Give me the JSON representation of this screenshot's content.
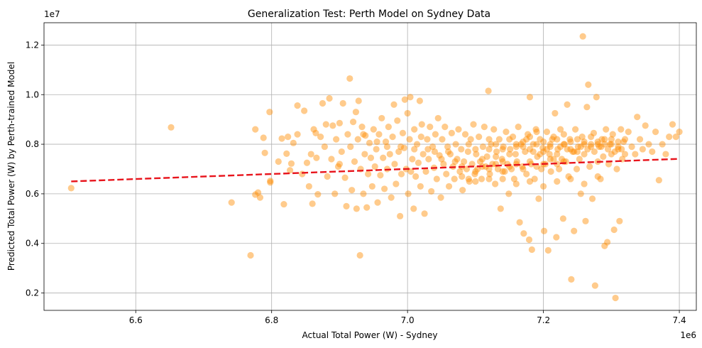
{
  "chart_data": {
    "type": "scatter",
    "title": "Generalization Test: Perth Model on Sydney Data",
    "xlabel": "Actual Total Power (W) - Sydney",
    "ylabel": "Predicted Total Power (W) by Perth-trained Model",
    "x_offset_label": "1e6",
    "y_offset_label": "1e7",
    "xlim": [
      6.465,
      7.425
    ],
    "ylim": [
      0.13,
      1.29
    ],
    "x_ticks": [
      6.6,
      6.8,
      7.0,
      7.2,
      7.4
    ],
    "x_tick_labels": [
      "6.6",
      "6.8",
      "7.0",
      "7.2",
      "7.4"
    ],
    "y_ticks": [
      0.2,
      0.4,
      0.6,
      0.8,
      1.0,
      1.2
    ],
    "y_tick_labels": [
      "0.2",
      "0.4",
      "0.6",
      "0.8",
      "1.0",
      "1.2"
    ],
    "grid": true,
    "scatter_color": "#ff8c00",
    "scatter_alpha": 0.45,
    "trend_color": "#e8141c",
    "trend_line": {
      "x": [
        6.505,
        7.4
      ],
      "y": [
        0.65,
        0.741
      ]
    },
    "points": [
      [
        6.505,
        0.623
      ],
      [
        6.652,
        0.868
      ],
      [
        6.741,
        0.565
      ],
      [
        6.769,
        0.352
      ],
      [
        6.776,
        0.86
      ],
      [
        6.776,
        0.597
      ],
      [
        6.78,
        0.605
      ],
      [
        6.783,
        0.585
      ],
      [
        6.788,
        0.826
      ],
      [
        6.79,
        0.765
      ],
      [
        6.797,
        0.93
      ],
      [
        6.798,
        0.652
      ],
      [
        6.798,
        0.646
      ],
      [
        6.81,
        0.73
      ],
      [
        6.815,
        0.823
      ],
      [
        6.818,
        0.558
      ],
      [
        6.822,
        0.762
      ],
      [
        6.824,
        0.83
      ],
      [
        6.827,
        0.695
      ],
      [
        6.829,
        0.722
      ],
      [
        6.832,
        0.805
      ],
      [
        6.838,
        0.956
      ],
      [
        6.838,
        0.84
      ],
      [
        6.845,
        0.68
      ],
      [
        6.848,
        0.935
      ],
      [
        6.852,
        0.725
      ],
      [
        6.855,
        0.63
      ],
      [
        6.858,
        0.76
      ],
      [
        6.86,
        0.56
      ],
      [
        6.862,
        0.86
      ],
      [
        6.866,
        0.745
      ],
      [
        6.868,
        0.598
      ],
      [
        6.872,
        0.83
      ],
      [
        6.875,
        0.965
      ],
      [
        6.878,
        0.79
      ],
      [
        6.882,
        0.67
      ],
      [
        6.885,
        0.985
      ],
      [
        6.888,
        0.74
      ],
      [
        6.89,
        0.875
      ],
      [
        6.893,
        0.6
      ],
      [
        6.895,
        0.82
      ],
      [
        6.898,
        0.71
      ],
      [
        6.9,
        0.885
      ],
      [
        6.903,
        0.77
      ],
      [
        6.905,
        0.965
      ],
      [
        6.908,
        0.665
      ],
      [
        6.91,
        0.55
      ],
      [
        6.912,
        0.84
      ],
      [
        6.915,
        1.065
      ],
      [
        6.916,
        0.79
      ],
      [
        6.918,
        0.615
      ],
      [
        6.92,
        0.89
      ],
      [
        6.922,
        0.73
      ],
      [
        6.924,
        0.93
      ],
      [
        6.925,
        0.54
      ],
      [
        6.927,
        0.82
      ],
      [
        6.928,
        0.975
      ],
      [
        6.93,
        0.352
      ],
      [
        6.931,
        0.7
      ],
      [
        6.933,
        0.87
      ],
      [
        6.935,
        0.6
      ],
      [
        6.937,
        0.76
      ],
      [
        6.938,
        0.835
      ],
      [
        6.94,
        0.545
      ],
      [
        6.942,
        0.68
      ],
      [
        6.944,
        0.805
      ],
      [
        6.946,
        0.745
      ],
      [
        6.948,
        0.63
      ],
      [
        6.95,
        0.86
      ],
      [
        6.952,
        0.71
      ],
      [
        6.954,
        0.78
      ],
      [
        6.956,
        0.565
      ],
      [
        6.958,
        0.84
      ],
      [
        6.96,
        0.675
      ],
      [
        6.962,
        0.905
      ],
      [
        6.964,
        0.745
      ],
      [
        6.966,
        0.62
      ],
      [
        6.968,
        0.81
      ],
      [
        6.97,
        0.7
      ],
      [
        6.972,
        0.87
      ],
      [
        6.974,
        0.76
      ],
      [
        6.976,
        0.585
      ],
      [
        6.978,
        0.83
      ],
      [
        6.98,
        0.96
      ],
      [
        6.981,
        0.72
      ],
      [
        6.983,
        0.64
      ],
      [
        6.985,
        0.895
      ],
      [
        6.987,
        0.77
      ],
      [
        6.989,
        0.51
      ],
      [
        6.991,
        0.68
      ],
      [
        6.993,
        0.845
      ],
      [
        6.995,
        0.785
      ],
      [
        6.996,
        0.98
      ],
      [
        6.998,
        0.7
      ],
      [
        7.0,
        0.925
      ],
      [
        7.001,
        0.6
      ],
      [
        7.003,
        0.82
      ],
      [
        7.004,
        0.99
      ],
      [
        7.005,
        0.69
      ],
      [
        7.007,
        0.74
      ],
      [
        7.009,
        0.54
      ],
      [
        7.01,
        0.86
      ],
      [
        7.012,
        0.67
      ],
      [
        7.014,
        0.8
      ],
      [
        7.016,
        0.725
      ],
      [
        7.018,
        0.975
      ],
      [
        7.019,
        0.63
      ],
      [
        7.021,
        0.88
      ],
      [
        7.023,
        0.76
      ],
      [
        7.025,
        0.52
      ],
      [
        7.027,
        0.69
      ],
      [
        7.029,
        0.82
      ],
      [
        7.031,
        0.74
      ],
      [
        7.033,
        0.87
      ],
      [
        7.035,
        0.61
      ],
      [
        7.037,
        0.79
      ],
      [
        7.039,
        0.705
      ],
      [
        7.041,
        0.84
      ],
      [
        7.043,
        0.66
      ],
      [
        7.045,
        0.905
      ],
      [
        7.047,
        0.755
      ],
      [
        7.049,
        0.585
      ],
      [
        7.051,
        0.82
      ],
      [
        7.053,
        0.72
      ],
      [
        7.055,
        0.87
      ],
      [
        7.057,
        0.68
      ],
      [
        7.059,
        0.79
      ],
      [
        7.061,
        0.63
      ],
      [
        7.063,
        0.76
      ],
      [
        7.065,
        0.845
      ],
      [
        7.067,
        0.71
      ],
      [
        7.069,
        0.66
      ],
      [
        7.071,
        0.8
      ],
      [
        7.073,
        0.74
      ],
      [
        7.075,
        0.86
      ],
      [
        7.077,
        0.69
      ],
      [
        7.079,
        0.78
      ],
      [
        7.081,
        0.615
      ],
      [
        7.083,
        0.73
      ],
      [
        7.085,
        0.84
      ],
      [
        7.087,
        0.7
      ],
      [
        7.089,
        0.77
      ],
      [
        7.091,
        0.65
      ],
      [
        7.093,
        0.82
      ],
      [
        7.095,
        0.72
      ],
      [
        7.097,
        0.88
      ],
      [
        7.099,
        0.68
      ],
      [
        7.101,
        0.76
      ],
      [
        7.103,
        0.7
      ],
      [
        7.105,
        0.83
      ],
      [
        7.107,
        0.73
      ],
      [
        7.109,
        0.66
      ],
      [
        7.111,
        0.79
      ],
      [
        7.113,
        0.87
      ],
      [
        7.115,
        0.71
      ],
      [
        7.117,
        0.75
      ],
      [
        7.119,
        1.015
      ],
      [
        7.121,
        0.68
      ],
      [
        7.123,
        0.8
      ],
      [
        7.125,
        0.72
      ],
      [
        7.127,
        0.86
      ],
      [
        7.129,
        0.64
      ],
      [
        7.131,
        0.77
      ],
      [
        7.133,
        0.7
      ],
      [
        7.135,
        0.82
      ],
      [
        7.137,
        0.54
      ],
      [
        7.139,
        0.74
      ],
      [
        7.141,
        0.79
      ],
      [
        7.143,
        0.69
      ],
      [
        7.145,
        0.85
      ],
      [
        7.147,
        0.72
      ],
      [
        7.149,
        0.6
      ],
      [
        7.151,
        0.78
      ],
      [
        7.153,
        0.7
      ],
      [
        7.155,
        0.83
      ],
      [
        7.157,
        0.66
      ],
      [
        7.159,
        0.76
      ],
      [
        7.161,
        0.73
      ],
      [
        7.163,
        0.87
      ],
      [
        7.165,
        0.485
      ],
      [
        7.167,
        0.8
      ],
      [
        7.169,
        0.71
      ],
      [
        7.171,
        0.44
      ],
      [
        7.173,
        0.77
      ],
      [
        7.175,
        0.68
      ],
      [
        7.177,
        0.84
      ],
      [
        7.179,
        0.415
      ],
      [
        7.18,
        0.99
      ],
      [
        7.182,
        0.72
      ],
      [
        7.183,
        0.375
      ],
      [
        7.185,
        0.8
      ],
      [
        7.187,
        0.66
      ],
      [
        7.189,
        0.86
      ],
      [
        7.191,
        0.75
      ],
      [
        7.193,
        0.58
      ],
      [
        7.195,
        0.82
      ],
      [
        7.197,
        0.7
      ],
      [
        7.199,
        0.785
      ],
      [
        7.201,
        0.45
      ],
      [
        7.203,
        0.72
      ],
      [
        7.205,
        0.85
      ],
      [
        7.207,
        0.372
      ],
      [
        7.209,
        0.76
      ],
      [
        7.211,
        0.69
      ],
      [
        7.213,
        0.82
      ],
      [
        7.215,
        0.74
      ],
      [
        7.217,
        0.925
      ],
      [
        7.219,
        0.425
      ],
      [
        7.221,
        0.78
      ],
      [
        7.223,
        0.7
      ],
      [
        7.225,
        0.86
      ],
      [
        7.227,
        0.74
      ],
      [
        7.229,
        0.5
      ],
      [
        7.231,
        0.8
      ],
      [
        7.233,
        0.73
      ],
      [
        7.235,
        0.96
      ],
      [
        7.237,
        0.67
      ],
      [
        7.239,
        0.82
      ],
      [
        7.241,
        0.255
      ],
      [
        7.243,
        0.77
      ],
      [
        7.245,
        0.45
      ],
      [
        7.247,
        0.86
      ],
      [
        7.249,
        0.7
      ],
      [
        7.251,
        0.79
      ],
      [
        7.253,
        0.74
      ],
      [
        7.255,
        0.6
      ],
      [
        7.257,
        0.83
      ],
      [
        7.258,
        1.235
      ],
      [
        7.26,
        0.76
      ],
      [
        7.262,
        0.49
      ],
      [
        7.264,
        0.95
      ],
      [
        7.266,
        1.04
      ],
      [
        7.268,
        0.71
      ],
      [
        7.27,
        0.8
      ],
      [
        7.272,
        0.58
      ],
      [
        7.274,
        0.845
      ],
      [
        7.276,
        0.23
      ],
      [
        7.278,
        0.99
      ],
      [
        7.28,
        0.73
      ],
      [
        7.282,
        0.79
      ],
      [
        7.284,
        0.66
      ],
      [
        7.286,
        0.82
      ],
      [
        7.288,
        0.75
      ],
      [
        7.29,
        0.39
      ],
      [
        7.292,
        0.86
      ],
      [
        7.294,
        0.405
      ],
      [
        7.296,
        0.72
      ],
      [
        7.298,
        0.8
      ],
      [
        7.3,
        0.76
      ],
      [
        7.302,
        0.84
      ],
      [
        7.304,
        0.455
      ],
      [
        7.306,
        0.18
      ],
      [
        7.308,
        0.7
      ],
      [
        7.31,
        0.78
      ],
      [
        7.312,
        0.49
      ],
      [
        7.314,
        0.86
      ],
      [
        7.316,
        0.74
      ],
      [
        7.318,
        0.81
      ],
      [
        7.32,
        0.76
      ],
      [
        7.325,
        0.85
      ],
      [
        7.33,
        0.79
      ],
      [
        7.335,
        0.76
      ],
      [
        7.338,
        0.91
      ],
      [
        7.342,
        0.82
      ],
      [
        7.346,
        0.78
      ],
      [
        7.35,
        0.875
      ],
      [
        7.355,
        0.8
      ],
      [
        7.36,
        0.77
      ],
      [
        7.365,
        0.85
      ],
      [
        7.37,
        0.655
      ],
      [
        7.375,
        0.8
      ],
      [
        7.38,
        0.76
      ],
      [
        7.385,
        0.83
      ],
      [
        7.39,
        0.88
      ],
      [
        7.395,
        0.83
      ],
      [
        7.4,
        0.85
      ],
      [
        6.865,
        0.845
      ],
      [
        6.88,
        0.88
      ],
      [
        6.9,
        0.72
      ],
      [
        6.935,
        0.84
      ],
      [
        6.955,
        0.81
      ],
      [
        6.97,
        0.79
      ],
      [
        6.99,
        0.79
      ],
      [
        7.01,
        0.78
      ],
      [
        7.02,
        0.83
      ],
      [
        7.03,
        0.78
      ],
      [
        7.04,
        0.77
      ],
      [
        7.05,
        0.74
      ],
      [
        7.06,
        0.77
      ],
      [
        7.07,
        0.73
      ],
      [
        7.08,
        0.71
      ],
      [
        7.09,
        0.8
      ],
      [
        7.1,
        0.78
      ],
      [
        7.11,
        0.74
      ],
      [
        7.12,
        0.78
      ],
      [
        7.13,
        0.75
      ],
      [
        7.14,
        0.73
      ],
      [
        7.15,
        0.82
      ],
      [
        7.16,
        0.8
      ],
      [
        7.17,
        0.79
      ],
      [
        7.175,
        0.82
      ],
      [
        7.18,
        0.83
      ],
      [
        7.185,
        0.77
      ],
      [
        7.19,
        0.85
      ],
      [
        7.195,
        0.76
      ],
      [
        7.2,
        0.81
      ],
      [
        7.205,
        0.78
      ],
      [
        7.21,
        0.8
      ],
      [
        7.215,
        0.83
      ],
      [
        7.22,
        0.76
      ],
      [
        7.225,
        0.79
      ],
      [
        7.23,
        0.84
      ],
      [
        7.235,
        0.78
      ],
      [
        7.24,
        0.81
      ],
      [
        7.245,
        0.77
      ],
      [
        7.25,
        0.82
      ],
      [
        7.255,
        0.79
      ],
      [
        7.26,
        0.81
      ],
      [
        7.265,
        0.78
      ],
      [
        7.27,
        0.83
      ],
      [
        7.275,
        0.77
      ],
      [
        7.28,
        0.8
      ],
      [
        7.285,
        0.79
      ],
      [
        7.29,
        0.82
      ],
      [
        7.295,
        0.78
      ],
      [
        7.3,
        0.8
      ],
      [
        7.305,
        0.77
      ],
      [
        7.31,
        0.81
      ],
      [
        7.315,
        0.78
      ],
      [
        7.32,
        0.82
      ],
      [
        7.12,
        0.82
      ],
      [
        7.13,
        0.8
      ],
      [
        7.14,
        0.78
      ],
      [
        7.15,
        0.76
      ],
      [
        7.16,
        0.79
      ],
      [
        7.17,
        0.81
      ],
      [
        7.18,
        0.78
      ],
      [
        7.19,
        0.8
      ],
      [
        7.2,
        0.77
      ],
      [
        7.21,
        0.79
      ],
      [
        7.22,
        0.82
      ],
      [
        7.23,
        0.8
      ],
      [
        7.24,
        0.78
      ],
      [
        7.25,
        0.77
      ],
      [
        7.26,
        0.8
      ],
      [
        7.27,
        0.79
      ],
      [
        7.28,
        0.81
      ],
      [
        7.29,
        0.8
      ],
      [
        7.3,
        0.82
      ],
      [
        7.31,
        0.79
      ],
      [
        7.1,
        0.69
      ],
      [
        7.11,
        0.71
      ],
      [
        7.12,
        0.7
      ],
      [
        7.13,
        0.72
      ],
      [
        7.14,
        0.69
      ],
      [
        7.15,
        0.71
      ],
      [
        7.16,
        0.72
      ],
      [
        7.17,
        0.7
      ],
      [
        7.18,
        0.73
      ],
      [
        7.19,
        0.71
      ],
      [
        7.2,
        0.72
      ],
      [
        7.21,
        0.74
      ],
      [
        7.22,
        0.72
      ],
      [
        7.23,
        0.73
      ],
      [
        7.08,
        0.67
      ],
      [
        7.09,
        0.66
      ],
      [
        7.1,
        0.65
      ],
      [
        7.12,
        0.66
      ],
      [
        7.14,
        0.66
      ],
      [
        7.16,
        0.64
      ],
      [
        7.18,
        0.65
      ],
      [
        7.2,
        0.63
      ],
      [
        7.22,
        0.65
      ],
      [
        7.24,
        0.66
      ],
      [
        7.26,
        0.64
      ],
      [
        7.28,
        0.67
      ]
    ]
  }
}
